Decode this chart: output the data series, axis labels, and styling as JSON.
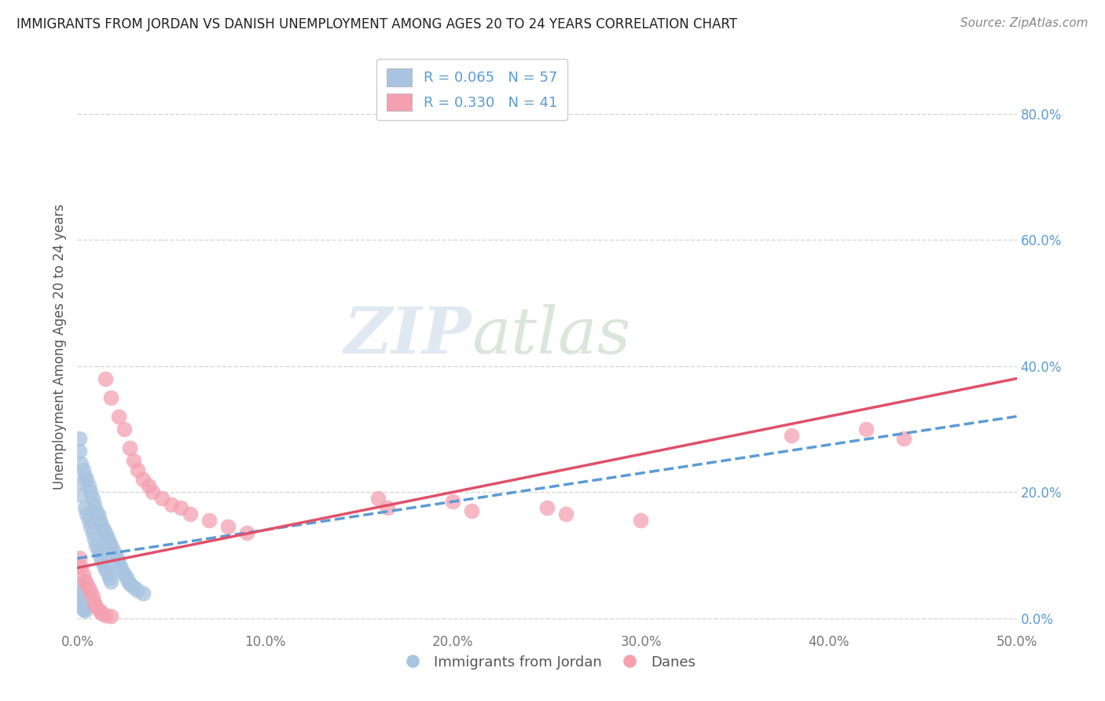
{
  "title": "IMMIGRANTS FROM JORDAN VS DANISH UNEMPLOYMENT AMONG AGES 20 TO 24 YEARS CORRELATION CHART",
  "source": "Source: ZipAtlas.com",
  "ylabel": "Unemployment Among Ages 20 to 24 years",
  "xlim": [
    0.0,
    0.5
  ],
  "ylim": [
    -0.02,
    0.88
  ],
  "xticks": [
    0.0,
    0.1,
    0.2,
    0.3,
    0.4,
    0.5
  ],
  "yticks_right": [
    0.0,
    0.2,
    0.4,
    0.6,
    0.8
  ],
  "legend_r1": "R = 0.065",
  "legend_n1": "N = 57",
  "legend_r2": "R = 0.330",
  "legend_n2": "N = 41",
  "blue_color": "#a8c4e0",
  "pink_color": "#f4a0b0",
  "blue_line_color": "#5b9bd5",
  "pink_line_color": "#e0506a",
  "blue_line": {
    "x0": 0.0,
    "y0": 0.095,
    "x1": 0.5,
    "y1": 0.32
  },
  "pink_line": {
    "x0": 0.0,
    "y0": 0.08,
    "x1": 0.5,
    "y1": 0.38
  },
  "blue_scatter": [
    [
      0.001,
      0.285
    ],
    [
      0.001,
      0.265
    ],
    [
      0.002,
      0.245
    ],
    [
      0.002,
      0.195
    ],
    [
      0.003,
      0.235
    ],
    [
      0.003,
      0.215
    ],
    [
      0.004,
      0.225
    ],
    [
      0.004,
      0.175
    ],
    [
      0.005,
      0.22
    ],
    [
      0.005,
      0.165
    ],
    [
      0.006,
      0.21
    ],
    [
      0.006,
      0.155
    ],
    [
      0.007,
      0.2
    ],
    [
      0.007,
      0.145
    ],
    [
      0.008,
      0.19
    ],
    [
      0.008,
      0.135
    ],
    [
      0.009,
      0.18
    ],
    [
      0.009,
      0.125
    ],
    [
      0.01,
      0.17
    ],
    [
      0.01,
      0.115
    ],
    [
      0.011,
      0.165
    ],
    [
      0.011,
      0.108
    ],
    [
      0.012,
      0.155
    ],
    [
      0.012,
      0.1
    ],
    [
      0.013,
      0.148
    ],
    [
      0.013,
      0.092
    ],
    [
      0.014,
      0.14
    ],
    [
      0.014,
      0.085
    ],
    [
      0.015,
      0.135
    ],
    [
      0.015,
      0.078
    ],
    [
      0.016,
      0.128
    ],
    [
      0.016,
      0.072
    ],
    [
      0.017,
      0.12
    ],
    [
      0.017,
      0.065
    ],
    [
      0.018,
      0.115
    ],
    [
      0.018,
      0.058
    ],
    [
      0.019,
      0.108
    ],
    [
      0.02,
      0.1
    ],
    [
      0.021,
      0.095
    ],
    [
      0.022,
      0.088
    ],
    [
      0.023,
      0.082
    ],
    [
      0.024,
      0.075
    ],
    [
      0.025,
      0.07
    ],
    [
      0.026,
      0.065
    ],
    [
      0.027,
      0.06
    ],
    [
      0.028,
      0.055
    ],
    [
      0.03,
      0.05
    ],
    [
      0.032,
      0.045
    ],
    [
      0.035,
      0.04
    ],
    [
      0.001,
      0.052
    ],
    [
      0.001,
      0.042
    ],
    [
      0.001,
      0.032
    ],
    [
      0.002,
      0.025
    ],
    [
      0.002,
      0.02
    ],
    [
      0.003,
      0.018
    ],
    [
      0.003,
      0.015
    ],
    [
      0.004,
      0.012
    ]
  ],
  "pink_scatter": [
    [
      0.001,
      0.095
    ],
    [
      0.002,
      0.082
    ],
    [
      0.003,
      0.07
    ],
    [
      0.004,
      0.06
    ],
    [
      0.005,
      0.055
    ],
    [
      0.006,
      0.048
    ],
    [
      0.007,
      0.042
    ],
    [
      0.008,
      0.035
    ],
    [
      0.009,
      0.025
    ],
    [
      0.01,
      0.018
    ],
    [
      0.012,
      0.012
    ],
    [
      0.013,
      0.008
    ],
    [
      0.015,
      0.005
    ],
    [
      0.018,
      0.003
    ],
    [
      0.015,
      0.38
    ],
    [
      0.018,
      0.35
    ],
    [
      0.022,
      0.32
    ],
    [
      0.025,
      0.3
    ],
    [
      0.028,
      0.27
    ],
    [
      0.03,
      0.25
    ],
    [
      0.032,
      0.235
    ],
    [
      0.035,
      0.22
    ],
    [
      0.038,
      0.21
    ],
    [
      0.04,
      0.2
    ],
    [
      0.045,
      0.19
    ],
    [
      0.05,
      0.18
    ],
    [
      0.055,
      0.175
    ],
    [
      0.06,
      0.165
    ],
    [
      0.07,
      0.155
    ],
    [
      0.08,
      0.145
    ],
    [
      0.09,
      0.135
    ],
    [
      0.16,
      0.19
    ],
    [
      0.165,
      0.175
    ],
    [
      0.2,
      0.185
    ],
    [
      0.21,
      0.17
    ],
    [
      0.25,
      0.175
    ],
    [
      0.26,
      0.165
    ],
    [
      0.3,
      0.155
    ],
    [
      0.38,
      0.29
    ],
    [
      0.42,
      0.3
    ],
    [
      0.44,
      0.285
    ]
  ],
  "watermark_zip": "ZIP",
  "watermark_atlas": "atlas",
  "background_color": "#ffffff",
  "grid_color": "#cccccc"
}
